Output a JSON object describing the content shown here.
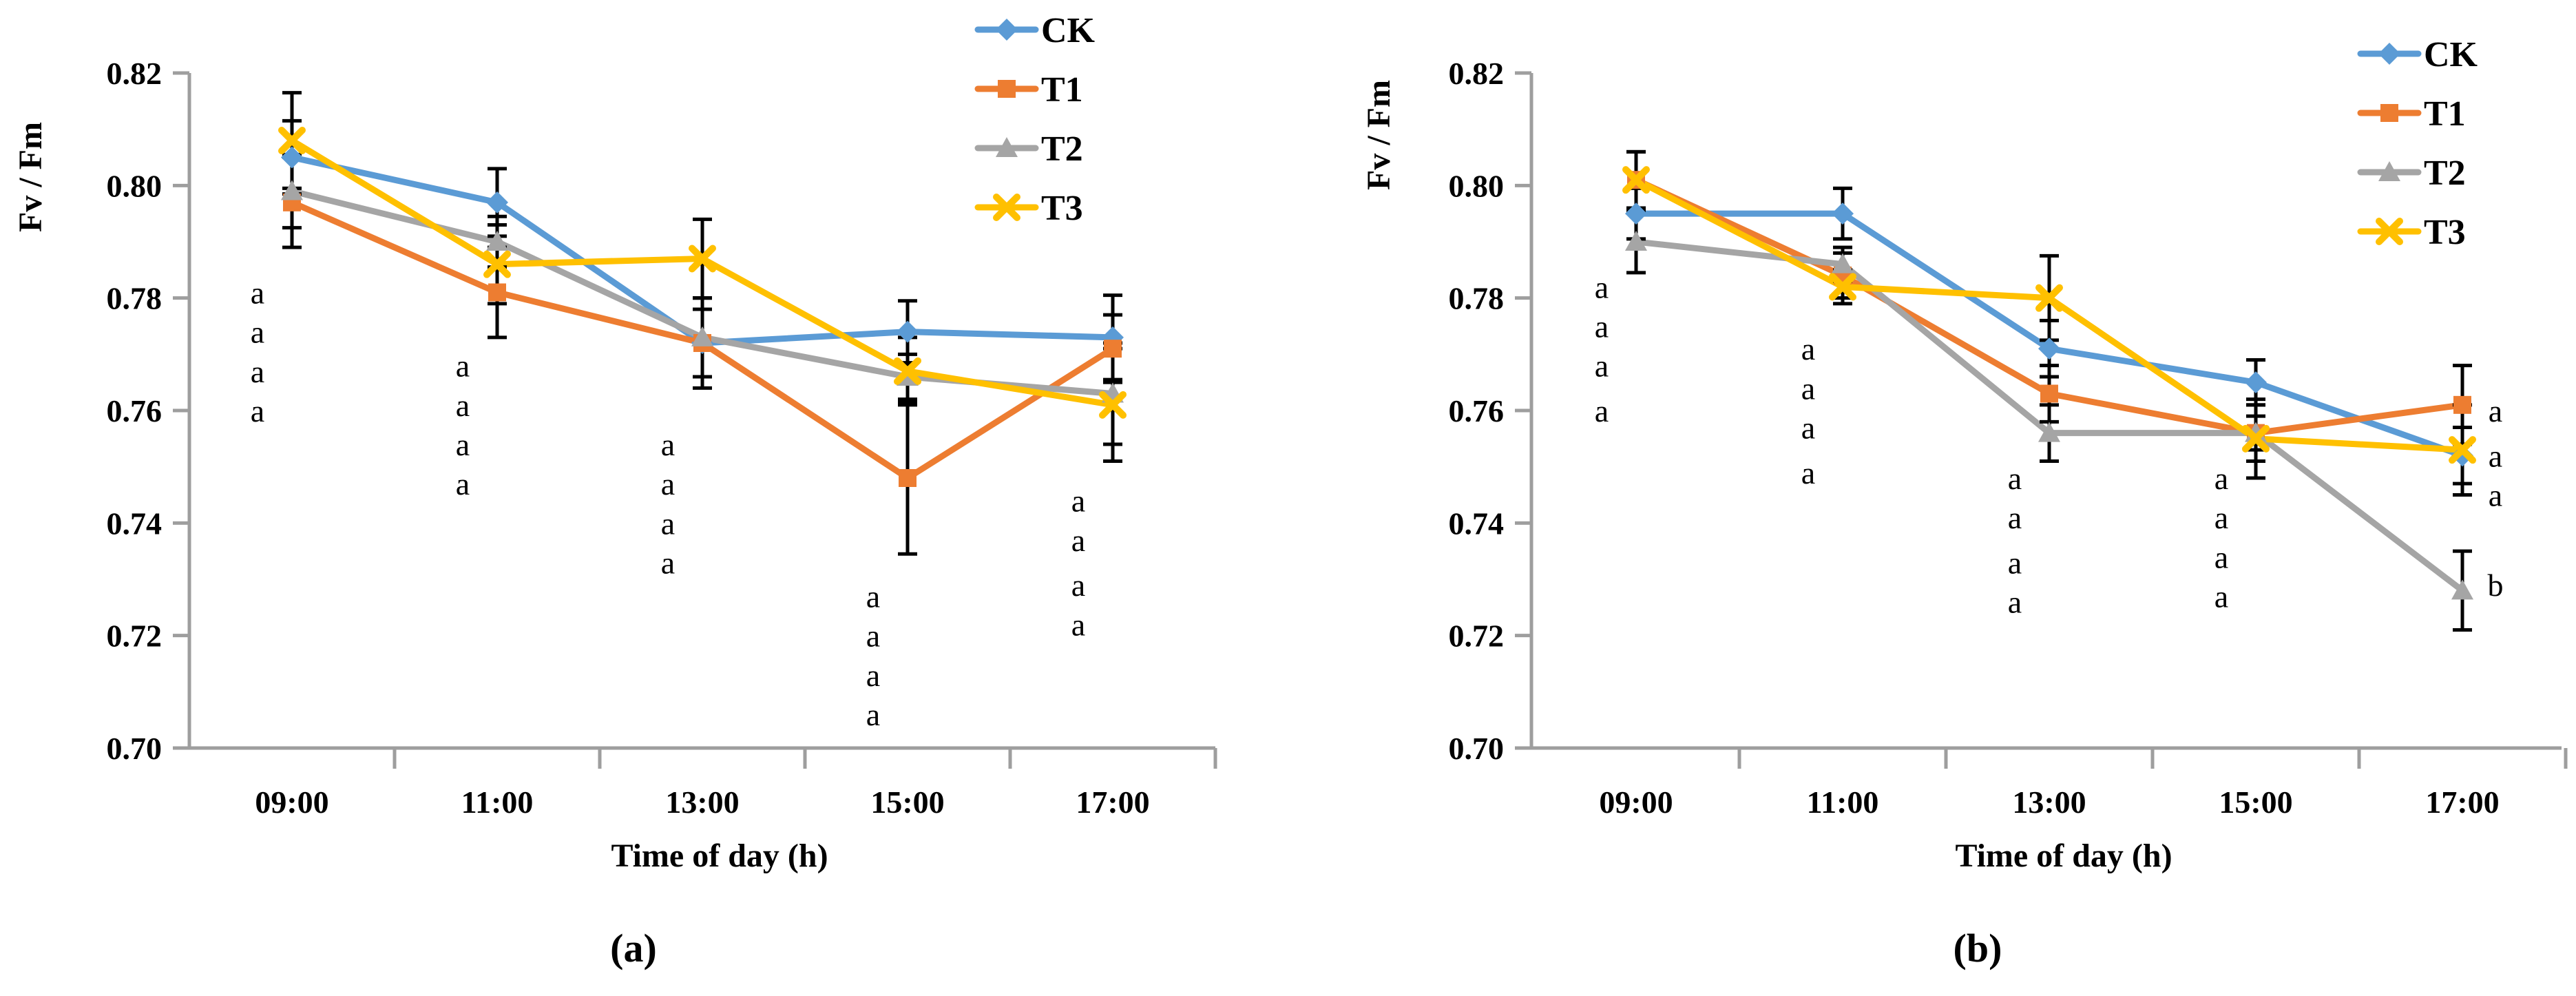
{
  "chart_data": [
    {
      "type": "line",
      "panel_label": "(a)",
      "xlabel": "Time of day  (h)",
      "ylabel": "Fv / Fm",
      "categories": [
        "09:00",
        "11:00",
        "13:00",
        "15:00",
        "17:00"
      ],
      "ylim": [
        0.7,
        0.82
      ],
      "ytick_step": 0.02,
      "yticks": [
        "0.70",
        "0.72",
        "0.74",
        "0.76",
        "0.78",
        "0.80",
        "0.82"
      ],
      "grid": false,
      "legend_position": "top-right-inside",
      "axis_color": "#9e9e9e",
      "error_bar_color": "#000000",
      "series": [
        {
          "name": "CK",
          "color": "#5B9BD5",
          "marker": "diamond",
          "values": [
            0.805,
            0.797,
            0.772,
            0.774,
            0.773
          ],
          "errors": [
            0.0065,
            0.006,
            0.008,
            0.0055,
            0.0075
          ]
        },
        {
          "name": "T1",
          "color": "#ED7D31",
          "marker": "square",
          "values": [
            0.797,
            0.781,
            0.772,
            0.748,
            0.771
          ],
          "errors": [
            0.008,
            0.008,
            0.006,
            0.0135,
            0.006
          ]
        },
        {
          "name": "T2",
          "color": "#A5A5A5",
          "marker": "triangle",
          "values": [
            0.799,
            0.79,
            0.773,
            0.766,
            0.763
          ],
          "errors": [
            0.0065,
            0.0045,
            0.007,
            0.004,
            0.009
          ]
        },
        {
          "name": "T3",
          "color": "#FFC000",
          "marker": "x",
          "values": [
            0.808,
            0.786,
            0.787,
            0.767,
            0.761
          ],
          "errors": [
            0.0085,
            0.007,
            0.007,
            0.006,
            0.01
          ]
        }
      ],
      "sig_letters": [
        {
          "category": "09:00",
          "side": "left",
          "letters": [
            "a",
            "a",
            "a",
            "a"
          ],
          "values": [
            0.781,
            0.774,
            0.767,
            0.76
          ]
        },
        {
          "category": "11:00",
          "side": "left",
          "letters": [
            "a",
            "a",
            "a",
            "a"
          ],
          "values": [
            0.768,
            0.761,
            0.754,
            0.747
          ]
        },
        {
          "category": "13:00",
          "side": "left",
          "letters": [
            "a",
            "a",
            "a",
            "a"
          ],
          "values": [
            0.754,
            0.747,
            0.74,
            0.733
          ]
        },
        {
          "category": "15:00",
          "side": "left",
          "letters": [
            "a",
            "a",
            "a",
            "a"
          ],
          "values": [
            0.727,
            0.72,
            0.713,
            0.706
          ]
        },
        {
          "category": "17:00",
          "side": "left",
          "letters": [
            "a",
            "a",
            "a",
            "a"
          ],
          "values": [
            0.744,
            0.737,
            0.729,
            0.722
          ]
        }
      ]
    },
    {
      "type": "line",
      "panel_label": "(b)",
      "xlabel": "Time of day (h)",
      "ylabel": "Fv / Fm",
      "categories": [
        "09:00",
        "11:00",
        "13:00",
        "15:00",
        "17:00"
      ],
      "ylim": [
        0.7,
        0.82
      ],
      "ytick_step": 0.02,
      "yticks": [
        "0.70",
        "0.72",
        "0.74",
        "0.76",
        "0.78",
        "0.80",
        "0.82"
      ],
      "grid": false,
      "legend_position": "top-right-inside",
      "axis_color": "#9e9e9e",
      "error_bar_color": "#000000",
      "series": [
        {
          "name": "CK",
          "color": "#5B9BD5",
          "marker": "diamond",
          "values": [
            0.795,
            0.795,
            0.771,
            0.765,
            0.752
          ],
          "errors": [
            0.0045,
            0.0045,
            0.005,
            0.004,
            0.005
          ]
        },
        {
          "name": "T1",
          "color": "#ED7D31",
          "marker": "square",
          "values": [
            0.801,
            0.784,
            0.763,
            0.756,
            0.761
          ],
          "errors": [
            0.005,
            0.004,
            0.005,
            0.003,
            0.007
          ]
        },
        {
          "name": "T2",
          "color": "#A5A5A5",
          "marker": "triangle",
          "values": [
            0.79,
            0.786,
            0.756,
            0.756,
            0.728
          ],
          "errors": [
            0.0055,
            0.003,
            0.005,
            0.005,
            0.007
          ]
        },
        {
          "name": "T3",
          "color": "#FFC000",
          "marker": "x",
          "values": [
            0.801,
            0.782,
            0.78,
            0.755,
            0.753
          ],
          "errors": [
            0.005,
            0.003,
            0.0075,
            0.007,
            0.008
          ]
        }
      ],
      "sig_letters": [
        {
          "category": "09:00",
          "side": "left",
          "letters": [
            "a",
            "a",
            "a",
            "a"
          ],
          "values": [
            0.782,
            0.775,
            0.768,
            0.76
          ]
        },
        {
          "category": "11:00",
          "side": "left",
          "letters": [
            "a",
            "a",
            "a",
            "a"
          ],
          "values": [
            0.771,
            0.764,
            0.757,
            0.749
          ]
        },
        {
          "category": "13:00",
          "side": "left",
          "letters": [
            "a",
            "a",
            "a",
            "a"
          ],
          "values": [
            0.748,
            0.741,
            0.733,
            0.726
          ]
        },
        {
          "category": "15:00",
          "side": "left",
          "letters": [
            "a",
            "a",
            "a",
            "a"
          ],
          "values": [
            0.748,
            0.741,
            0.734,
            0.727
          ]
        },
        {
          "category": "17:00",
          "side": "right",
          "letters": [
            "a",
            "a",
            "a",
            "b"
          ],
          "values": [
            0.76,
            0.752,
            0.745,
            0.729
          ]
        }
      ]
    }
  ]
}
